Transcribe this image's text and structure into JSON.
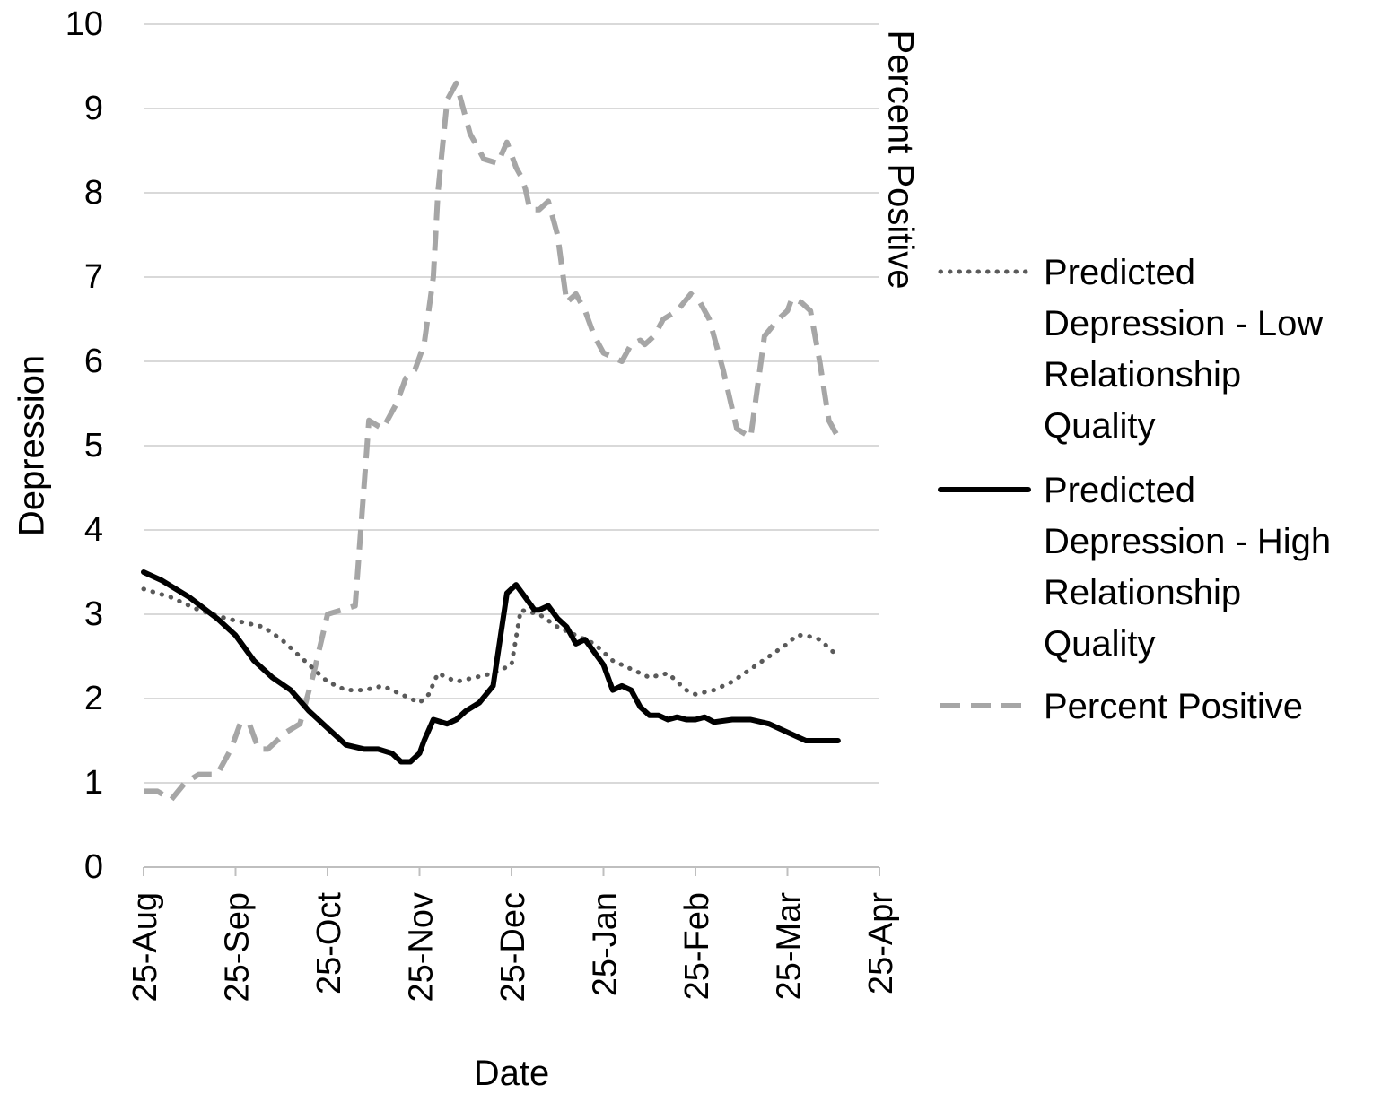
{
  "chart_data": {
    "type": "line",
    "xlabel": "Date",
    "ylabel": "Depression",
    "y2label": "Percent Positive",
    "ylim": [
      0,
      10
    ],
    "yticks": [
      0,
      1,
      2,
      3,
      4,
      5,
      6,
      7,
      8,
      9,
      10
    ],
    "x_categories": [
      "25-Aug",
      "25-Sep",
      "25-Oct",
      "25-Nov",
      "25-Dec",
      "25-Jan",
      "25-Feb",
      "25-Mar",
      "25-Apr"
    ],
    "x_unit": "months since 25-Aug",
    "grid": true,
    "legend_position": "right",
    "series": [
      {
        "name": "Predicted Depression - Low Relationship Quality",
        "style": "dotted",
        "color": "#5a5a5a",
        "x": [
          0,
          0.3,
          0.6,
          0.9,
          1.1,
          1.3,
          1.5,
          1.7,
          1.85,
          2.0,
          2.2,
          2.4,
          2.6,
          2.8,
          2.9,
          3.0,
          3.1,
          3.2,
          3.4,
          3.6,
          3.8,
          4.0,
          4.1,
          4.3,
          4.5,
          4.7,
          4.9,
          5.1,
          5.3,
          5.5,
          5.7,
          5.9,
          6.0,
          6.2,
          6.4,
          6.6,
          6.8,
          7.0,
          7.1,
          7.2,
          7.35,
          7.5,
          7.55
        ],
        "y": [
          3.3,
          3.2,
          3.05,
          2.95,
          2.9,
          2.85,
          2.7,
          2.5,
          2.35,
          2.2,
          2.1,
          2.1,
          2.15,
          2.05,
          2.0,
          1.95,
          2.05,
          2.3,
          2.2,
          2.25,
          2.3,
          2.4,
          3.05,
          3.0,
          2.85,
          2.75,
          2.65,
          2.45,
          2.35,
          2.25,
          2.3,
          2.1,
          2.05,
          2.1,
          2.2,
          2.35,
          2.5,
          2.65,
          2.75,
          2.75,
          2.7,
          2.55,
          2.5
        ]
      },
      {
        "name": "Predicted Depression - High Relationship Quality",
        "style": "solid",
        "color": "#000000",
        "x": [
          0,
          0.2,
          0.35,
          0.5,
          0.8,
          1.0,
          1.2,
          1.4,
          1.6,
          1.8,
          2.0,
          2.2,
          2.4,
          2.55,
          2.7,
          2.8,
          2.9,
          3.0,
          3.05,
          3.15,
          3.3,
          3.4,
          3.5,
          3.65,
          3.8,
          3.95,
          4.05,
          4.15,
          4.25,
          4.3,
          4.4,
          4.5,
          4.6,
          4.7,
          4.8,
          4.9,
          5.0,
          5.1,
          5.2,
          5.3,
          5.4,
          5.5,
          5.6,
          5.7,
          5.8,
          5.9,
          6.0,
          6.1,
          6.2,
          6.4,
          6.6,
          6.8,
          7.0,
          7.2,
          7.35,
          7.45,
          7.55
        ],
        "y": [
          3.5,
          3.4,
          3.3,
          3.2,
          2.95,
          2.75,
          2.45,
          2.25,
          2.1,
          1.85,
          1.65,
          1.45,
          1.4,
          1.4,
          1.35,
          1.25,
          1.25,
          1.35,
          1.5,
          1.75,
          1.7,
          1.75,
          1.85,
          1.95,
          2.15,
          3.25,
          3.35,
          3.2,
          3.05,
          3.05,
          3.1,
          2.95,
          2.85,
          2.65,
          2.7,
          2.55,
          2.4,
          2.1,
          2.15,
          2.1,
          1.9,
          1.8,
          1.8,
          1.75,
          1.78,
          1.75,
          1.75,
          1.78,
          1.72,
          1.75,
          1.75,
          1.7,
          1.6,
          1.5,
          1.5,
          1.5,
          1.5
        ]
      },
      {
        "name": "Percent Positive",
        "style": "dashed",
        "color": "#a6a6a6",
        "x": [
          0,
          0.15,
          0.3,
          0.45,
          0.6,
          0.8,
          0.95,
          1.05,
          1.15,
          1.25,
          1.35,
          1.45,
          1.55,
          1.7,
          1.85,
          2.0,
          2.15,
          2.3,
          2.45,
          2.6,
          2.75,
          2.85,
          2.95,
          3.05,
          3.15,
          3.2,
          3.3,
          3.4,
          3.55,
          3.7,
          3.85,
          3.95,
          4.05,
          4.1,
          4.15,
          4.2,
          4.3,
          4.4,
          4.5,
          4.6,
          4.7,
          4.8,
          4.9,
          5.0,
          5.1,
          5.2,
          5.3,
          5.4,
          5.45,
          5.55,
          5.65,
          5.8,
          5.95,
          6.05,
          6.15,
          6.3,
          6.45,
          6.6,
          6.75,
          6.9,
          7.0,
          7.05,
          7.15,
          7.25,
          7.35,
          7.45,
          7.55
        ],
        "y": [
          0.9,
          0.9,
          0.8,
          1.0,
          1.1,
          1.1,
          1.4,
          1.7,
          1.7,
          1.4,
          1.4,
          1.5,
          1.6,
          1.7,
          2.3,
          3.0,
          3.05,
          3.1,
          5.3,
          5.2,
          5.5,
          5.8,
          5.9,
          6.2,
          7.0,
          8.0,
          9.1,
          9.3,
          8.7,
          8.4,
          8.35,
          8.6,
          8.3,
          8.2,
          8.05,
          7.8,
          7.8,
          7.9,
          7.5,
          6.7,
          6.8,
          6.6,
          6.3,
          6.1,
          6.05,
          6.0,
          6.2,
          6.25,
          6.2,
          6.3,
          6.5,
          6.6,
          6.8,
          6.7,
          6.5,
          5.9,
          5.2,
          5.1,
          6.3,
          6.5,
          6.6,
          6.75,
          6.7,
          6.6,
          6.0,
          5.3,
          5.1
        ]
      }
    ]
  }
}
